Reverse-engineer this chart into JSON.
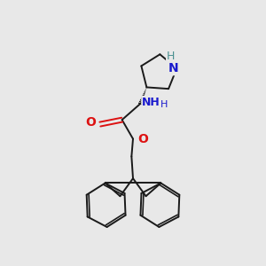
{
  "background_color": "#e8e8e8",
  "bond_color": "#1a1a1a",
  "N_color": "#1a1acd",
  "O_color": "#dd1111",
  "NH_color": "#4a9090",
  "bond_width": 1.4,
  "figsize": [
    3.0,
    3.0
  ],
  "dpi": 100,
  "xlim": [
    -1.5,
    1.5
  ],
  "ylim": [
    -1.8,
    1.8
  ]
}
